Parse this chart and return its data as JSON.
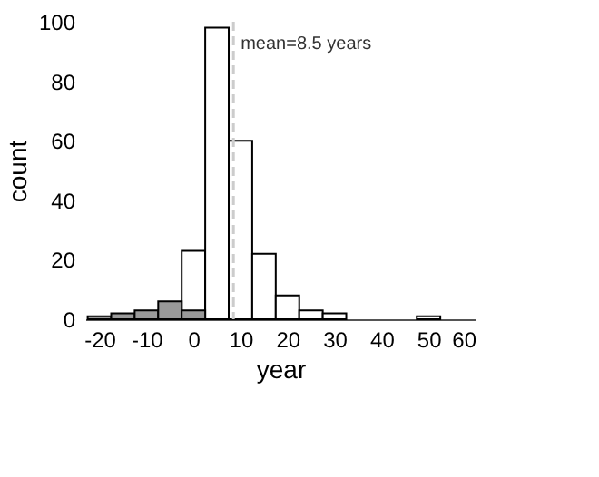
{
  "chart_data": {
    "type": "histogram",
    "xlabel": "year",
    "ylabel": "count",
    "bins": [
      -22.5,
      -17.5,
      -12.5,
      -7.5,
      -2.5,
      2.5,
      7.5,
      12.5,
      17.5,
      22.5,
      27.5,
      32.5,
      37.5,
      42.5,
      47.5,
      52.5
    ],
    "series": [
      {
        "color": "#ffffff",
        "values": [
          null,
          null,
          null,
          null,
          23,
          98,
          60,
          22,
          8,
          3,
          2,
          null,
          null,
          null,
          1
        ]
      },
      {
        "color": "#999999",
        "values": [
          1,
          2,
          3,
          6,
          3,
          null,
          null,
          null,
          null,
          null,
          null,
          null,
          null,
          null,
          null
        ]
      }
    ],
    "xlim": [
      -23,
      60
    ],
    "xticks": [
      -20,
      -10,
      0,
      10,
      20,
      30,
      40,
      50,
      60
    ],
    "ylim": [
      0,
      100
    ],
    "yticks": [
      0,
      20,
      40,
      60,
      80,
      100
    ],
    "ref_lines": [
      {
        "axis": "x",
        "value": 8.5,
        "label": "mean=8.5 years",
        "color": "#cccccc",
        "line_style": "dashed"
      }
    ],
    "grid": false,
    "legend": false
  }
}
